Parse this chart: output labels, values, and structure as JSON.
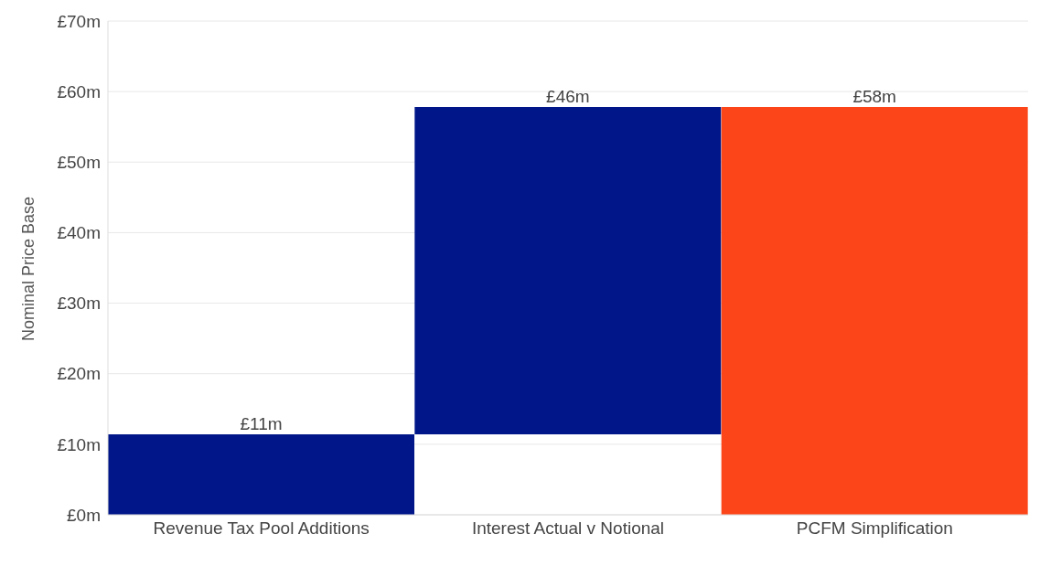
{
  "chart_data": {
    "type": "bar",
    "ylabel": "Nominal Price Base",
    "categories": [
      "Revenue Tax Pool Additions",
      "Interest Actual v Notional",
      "PCFM Simplification"
    ],
    "values": [
      11.4,
      46.4,
      57.8
    ],
    "base": [
      0,
      11.4,
      0
    ],
    "colors": [
      "#001689",
      "#001689",
      "#fc4619"
    ],
    "value_labels": [
      "£11m",
      "£46m",
      "£58m"
    ],
    "ylim": [
      0,
      70
    ],
    "yticks": [
      {
        "value": 0,
        "label": "£0m"
      },
      {
        "value": 10,
        "label": "£10m"
      },
      {
        "value": 20,
        "label": "£20m"
      },
      {
        "value": 30,
        "label": "£30m"
      },
      {
        "value": 40,
        "label": "£40m"
      },
      {
        "value": 50,
        "label": "£50m"
      },
      {
        "value": 60,
        "label": "£60m"
      },
      {
        "value": 70,
        "label": "£70m"
      }
    ],
    "grid": "y"
  }
}
